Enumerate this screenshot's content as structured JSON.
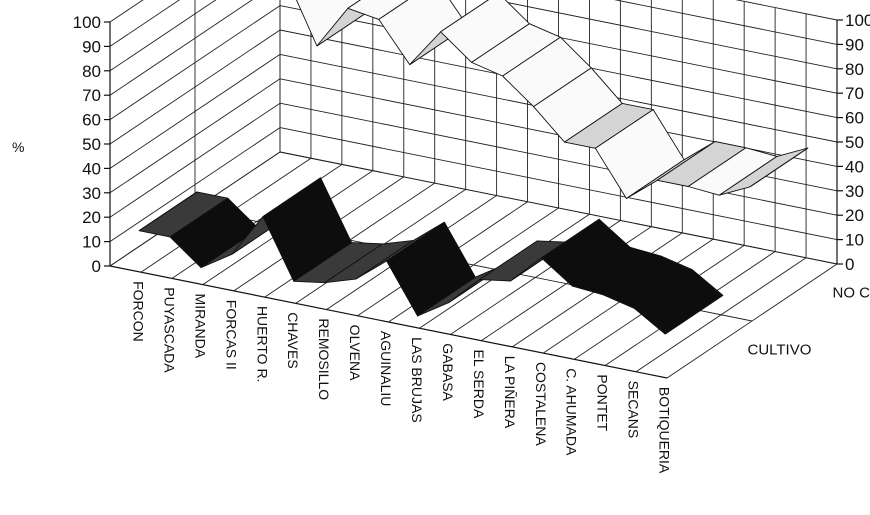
{
  "chart_data": {
    "type": "area",
    "subtype": "3d-ribbon",
    "title": "",
    "ylabel": "%",
    "xlabel": "",
    "ylim": [
      0,
      100
    ],
    "yticks": [
      0,
      10,
      20,
      30,
      40,
      50,
      60,
      70,
      80,
      90,
      100
    ],
    "grid": true,
    "categories": [
      "FORCON",
      "PUYASCADA",
      "MIRANDA",
      "FORCAS II",
      "HUERTO R.",
      "CHAVES",
      "REMOSILLO",
      "OLVENA",
      "AGUINALIU",
      "LAS BRUJAS",
      "GABASA",
      "EL SERDA",
      "LA PIÑERA",
      "COSTALENA",
      "C. AHUMADA",
      "PONTET",
      "SECANS",
      "BOTIQUERIA"
    ],
    "depth_categories": [
      "NO CULTIVO",
      "CULTIVO"
    ],
    "series": [
      {
        "name": "CULTIVO",
        "color": "#1a1a1a",
        "values": [
          12,
          12,
          2,
          10,
          28,
          4,
          6,
          10,
          20,
          0,
          8,
          20,
          22,
          34,
          25,
          24,
          21,
          13
        ]
      },
      {
        "name": "NO CULTIVO",
        "color": "#f2f2f2",
        "values": [
          88,
          88,
          98,
          72,
          90,
          88,
          72,
          88,
          78,
          75,
          65,
          53,
          53,
          35,
          45,
          45,
          44,
          50
        ]
      }
    ]
  }
}
